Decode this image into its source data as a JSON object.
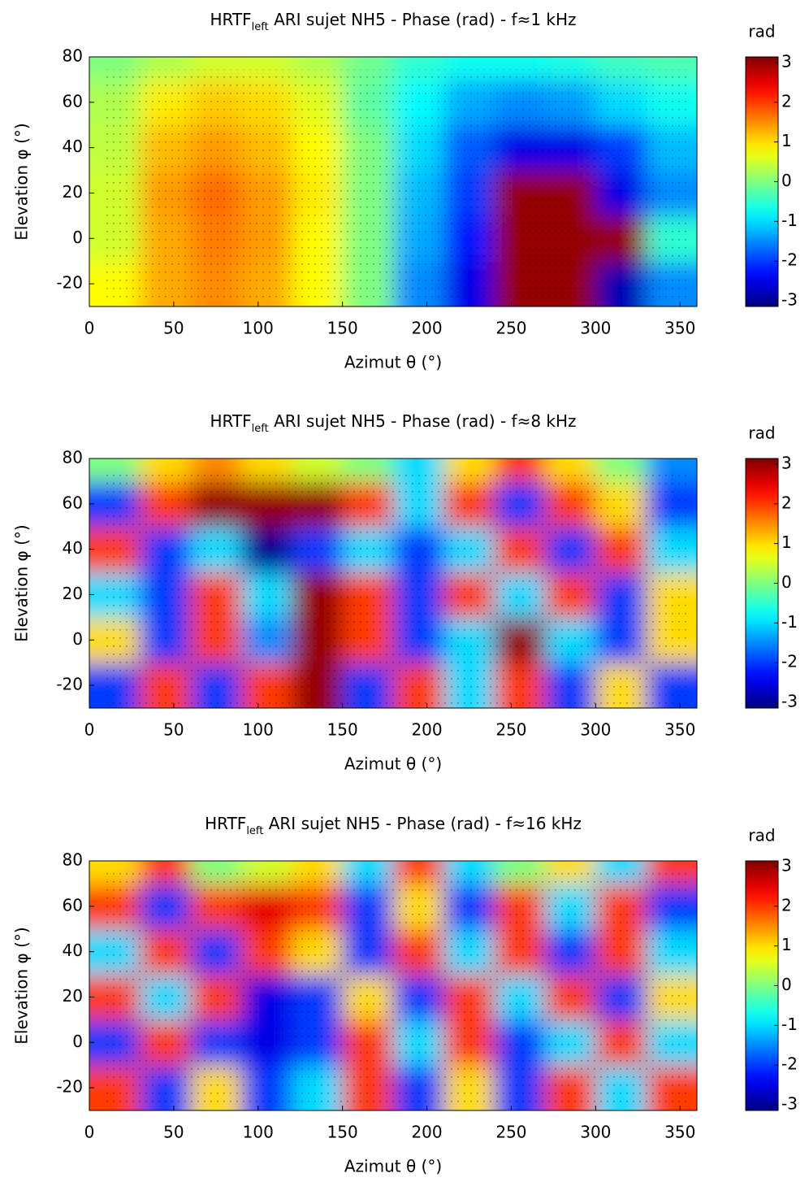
{
  "chart_data": [
    {
      "type": "heatmap",
      "title": [
        "HRTF",
        "left",
        " ARI sujet NH5 - Phase (rad) - f≈1 kHz"
      ],
      "xlabel": "Azimut θ (°)",
      "ylabel": "Elevation φ (°)",
      "xlim": [
        0,
        360
      ],
      "ylim": [
        -30,
        80
      ],
      "xticks": [
        0,
        50,
        100,
        150,
        200,
        250,
        300,
        350
      ],
      "yticks": [
        -20,
        0,
        20,
        40,
        60,
        80
      ],
      "xbins": [
        0,
        30,
        60,
        90,
        120,
        150,
        180,
        210,
        240,
        270,
        300,
        330,
        360
      ],
      "ybins": [
        -30,
        -10,
        10,
        30,
        50,
        70,
        80
      ],
      "z": [
        [
          0.8,
          1.3,
          1.5,
          1.3,
          0.8,
          0,
          -1.5,
          -2.5,
          3,
          3,
          -2.8,
          -1.5
        ],
        [
          0.5,
          1.3,
          1.6,
          1.4,
          0.8,
          0,
          -1.3,
          -2.2,
          3,
          3,
          3,
          -0.5
        ],
        [
          0.5,
          1.4,
          1.7,
          1.4,
          0.9,
          0,
          -1.2,
          -2,
          3,
          3,
          -2.5,
          -1.5
        ],
        [
          0.4,
          1.2,
          1.4,
          1.2,
          0.8,
          0,
          -1,
          -1.8,
          -2.5,
          -2.5,
          -2,
          -1.2
        ],
        [
          0.3,
          0.9,
          1.1,
          1,
          0.6,
          -0.2,
          -0.8,
          -1.3,
          -1.5,
          -1.4,
          -1,
          -0.7
        ],
        [
          0,
          0.3,
          0.5,
          0.5,
          0.3,
          -0.1,
          -0.5,
          -0.7,
          -0.7,
          -0.6,
          -0.4,
          -0.3
        ]
      ],
      "colormap": "jet",
      "colorbar_label": "rad",
      "clim": [
        -3.1416,
        3.1416
      ],
      "cticks": [
        -3,
        -2,
        -1,
        0,
        1,
        2,
        3
      ]
    },
    {
      "type": "heatmap",
      "title": [
        "HRTF",
        "left",
        " ARI sujet NH5 - Phase (rad) - f≈8 kHz"
      ],
      "xlabel": "Azimut θ (°)",
      "ylabel": "Elevation φ (°)",
      "xlim": [
        0,
        360
      ],
      "ylim": [
        -30,
        80
      ],
      "xticks": [
        0,
        50,
        100,
        150,
        200,
        250,
        300,
        350
      ],
      "yticks": [
        -20,
        0,
        20,
        40,
        60,
        80
      ],
      "xbins": [
        0,
        30,
        60,
        90,
        120,
        150,
        180,
        210,
        240,
        270,
        300,
        330,
        360
      ],
      "ybins": [
        -30,
        -10,
        10,
        30,
        50,
        70,
        80
      ],
      "z": [
        [
          -2,
          2,
          -2,
          2,
          3,
          -2,
          2,
          -1,
          2,
          -2,
          1,
          -2
        ],
        [
          1,
          -2,
          2,
          -1.5,
          3,
          2,
          -2,
          -1,
          3,
          -1,
          -2,
          1
        ],
        [
          -1,
          -2,
          2,
          -1,
          3,
          2,
          -2,
          2,
          -1,
          2,
          -2,
          1
        ],
        [
          2,
          -2,
          -1,
          -3,
          -2,
          -1,
          -2,
          -1,
          2,
          -2,
          2,
          -1
        ],
        [
          -2,
          2,
          3,
          3,
          3,
          2,
          -1,
          2,
          -2,
          2,
          1,
          -2
        ],
        [
          0,
          1,
          1.5,
          1,
          0.5,
          0,
          -1,
          1,
          2,
          1,
          0,
          -1.5
        ]
      ],
      "colormap": "jet",
      "colorbar_label": "rad",
      "clim": [
        -3.1416,
        3.1416
      ],
      "cticks": [
        -3,
        -2,
        -1,
        0,
        1,
        2,
        3
      ]
    },
    {
      "type": "heatmap",
      "title": [
        "HRTF",
        "left",
        " ARI sujet NH5 - Phase (rad) - f≈16 kHz"
      ],
      "xlabel": "Azimut θ (°)",
      "ylabel": "Elevation φ (°)",
      "xlim": [
        0,
        360
      ],
      "ylim": [
        -30,
        80
      ],
      "xticks": [
        0,
        50,
        100,
        150,
        200,
        250,
        300,
        350
      ],
      "yticks": [
        -20,
        0,
        20,
        40,
        60,
        80
      ],
      "xbins": [
        0,
        30,
        60,
        90,
        120,
        150,
        180,
        210,
        240,
        270,
        300,
        330,
        360
      ],
      "ybins": [
        -30,
        -10,
        10,
        30,
        50,
        70,
        80
      ],
      "z": [
        [
          2,
          -2,
          1,
          -2,
          -1,
          2,
          -2,
          1,
          -2,
          2,
          -1,
          2
        ],
        [
          -2,
          2,
          -2,
          -2.5,
          -2,
          2,
          -1,
          2,
          -2,
          -1,
          2,
          -1
        ],
        [
          2,
          -1,
          2,
          -2.5,
          -2,
          1,
          -2,
          2,
          -1,
          2,
          -2,
          1
        ],
        [
          -1,
          2,
          -2,
          2,
          1,
          -2,
          2,
          -1,
          2,
          -2,
          2,
          -1
        ],
        [
          2,
          -2,
          2,
          2.5,
          2,
          -2,
          1,
          -2,
          2,
          -1,
          2,
          -2
        ],
        [
          1,
          2,
          0,
          0.5,
          1,
          -1,
          2,
          -1,
          0,
          1,
          -1,
          2
        ]
      ],
      "colormap": "jet",
      "colorbar_label": "rad",
      "clim": [
        -3.1416,
        3.1416
      ],
      "cticks": [
        -3,
        -2,
        -1,
        0,
        1,
        2,
        3
      ]
    }
  ]
}
